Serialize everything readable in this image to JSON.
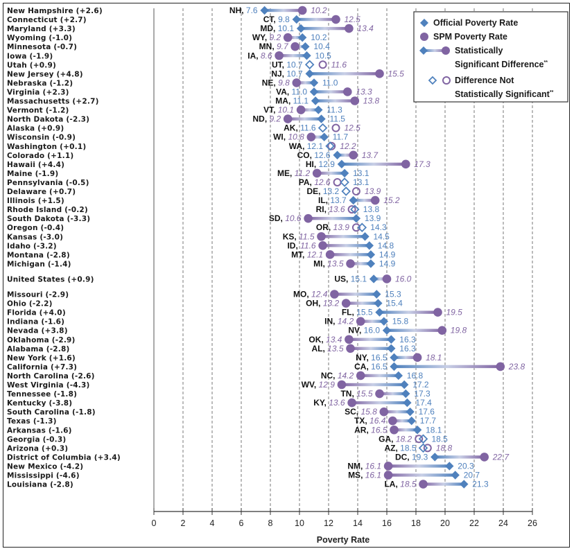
{
  "chart_data": {
    "type": "dumbbell",
    "title": "",
    "xlabel": "Poverty Rate",
    "ylabel": "",
    "xlim": [
      0,
      26
    ],
    "xticks": [
      0,
      2,
      4,
      6,
      8,
      10,
      12,
      14,
      16,
      18,
      20,
      22,
      24,
      26
    ],
    "grid": "vertical dashed",
    "legend_position": "top-right",
    "colors": {
      "official": "#4f81bd",
      "spm": "#8064a2"
    },
    "legend": [
      {
        "marker": "diamond-filled",
        "label": "Official Poverty Rate"
      },
      {
        "marker": "circle-filled",
        "label": "SPM Poverty Rate"
      },
      {
        "marker": "dumbbell",
        "label_line1": "Statistically",
        "label_line2": "Significant  Difference",
        "suffix": "**"
      },
      {
        "marker": "open-pair",
        "label_line1": "Difference Not",
        "label_line2": "Statistically  Significant",
        "suffix": "**"
      }
    ],
    "rows": [
      {
        "name": "New Hampshire",
        "diff": "(+2.6)",
        "abbr": "NH",
        "official": 7.6,
        "spm": 10.2,
        "sig": true
      },
      {
        "name": "Connecticut",
        "diff": "(+2.7)",
        "abbr": "CT",
        "official": 9.8,
        "spm": 12.5,
        "sig": true
      },
      {
        "name": "Maryland",
        "diff": "(+3.3)",
        "abbr": "MD",
        "official": 10.1,
        "spm": 13.4,
        "sig": true
      },
      {
        "name": "Wyoming",
        "diff": "(-1.0)",
        "abbr": "WY",
        "official": 10.2,
        "spm": 9.2,
        "sig": true
      },
      {
        "name": "Minnesota",
        "diff": "(-0.7)",
        "abbr": "MN",
        "official": 10.4,
        "spm": 9.7,
        "sig": true
      },
      {
        "name": "Iowa",
        "diff": "(-1.9)",
        "abbr": "IA",
        "official": 10.5,
        "spm": 8.6,
        "sig": true
      },
      {
        "name": "Utah",
        "diff": "(+0.9)",
        "abbr": "UT",
        "official": 10.7,
        "spm": 11.6,
        "sig": false
      },
      {
        "name": "New Jersey",
        "diff": "(+4.8)",
        "abbr": "NJ",
        "official": 10.7,
        "spm": 15.5,
        "sig": true
      },
      {
        "name": "Nebraska",
        "diff": "(-1.2)",
        "abbr": "NE",
        "official": 11.0,
        "spm": 9.8,
        "sig": true
      },
      {
        "name": "Virginia",
        "diff": "(+2.3)",
        "abbr": "VA",
        "official": 11.0,
        "spm": 13.3,
        "sig": true
      },
      {
        "name": "Massachusetts",
        "diff": "(+2.7)",
        "abbr": "MA",
        "official": 11.1,
        "spm": 13.8,
        "sig": true
      },
      {
        "name": "Vermont",
        "diff": "(-1.2)",
        "abbr": "VT",
        "official": 11.3,
        "spm": 10.1,
        "sig": true
      },
      {
        "name": "North Dakota",
        "diff": "(-2.3)",
        "abbr": "ND",
        "official": 11.5,
        "spm": 9.2,
        "sig": true
      },
      {
        "name": "Alaska",
        "diff": "(+0.9)",
        "abbr": "AK",
        "official": 11.6,
        "spm": 12.5,
        "sig": false
      },
      {
        "name": "Wisconsin",
        "diff": "(-0.9)",
        "abbr": "WI",
        "official": 11.7,
        "spm": 10.8,
        "sig": true
      },
      {
        "name": "Washington",
        "diff": "(+0.1)",
        "abbr": "WA",
        "official": 12.1,
        "spm": 12.2,
        "sig": false
      },
      {
        "name": "Colorado",
        "diff": "(+1.1)",
        "abbr": "CO",
        "official": 12.6,
        "spm": 13.7,
        "sig": true
      },
      {
        "name": "Hawaii",
        "diff": "(+4.4)",
        "abbr": "HI",
        "official": 12.9,
        "spm": 17.3,
        "sig": true
      },
      {
        "name": "Maine",
        "diff": "(-1.9)",
        "abbr": "ME",
        "official": 13.1,
        "spm": 11.2,
        "sig": true
      },
      {
        "name": "Pennsylvania",
        "diff": "(-0.5)",
        "abbr": "PA",
        "official": 13.1,
        "spm": 12.6,
        "sig": false
      },
      {
        "name": "Delaware",
        "diff": "(+0.7)",
        "abbr": "DE",
        "official": 13.2,
        "spm": 13.9,
        "sig": false
      },
      {
        "name": "Illinois",
        "diff": "(+1.5)",
        "abbr": "IL",
        "official": 13.7,
        "spm": 15.2,
        "sig": true
      },
      {
        "name": "Rhode Island",
        "diff": "(-0.2)",
        "abbr": "RI",
        "official": 13.8,
        "spm": 13.6,
        "sig": false
      },
      {
        "name": "South Dakota",
        "diff": "(-3.3)",
        "abbr": "SD",
        "official": 13.9,
        "spm": 10.6,
        "sig": true
      },
      {
        "name": "Oregon",
        "diff": "(-0.4)",
        "abbr": "OR",
        "official": 14.3,
        "spm": 13.9,
        "sig": false
      },
      {
        "name": "Kansas",
        "diff": "(-3.0)",
        "abbr": "KS",
        "official": 14.5,
        "spm": 11.5,
        "sig": true
      },
      {
        "name": "Idaho",
        "diff": "(-3.2)",
        "abbr": "ID",
        "official": 14.8,
        "spm": 11.6,
        "sig": true
      },
      {
        "name": "Montana",
        "diff": "(-2.8)",
        "abbr": "MT",
        "official": 14.9,
        "spm": 12.1,
        "sig": true
      },
      {
        "name": "Michigan",
        "diff": "(-1.4)",
        "abbr": "MI",
        "official": 14.9,
        "spm": 13.5,
        "sig": true
      },
      {
        "name": "United States",
        "diff": "(+0.9)",
        "abbr": "US",
        "official": 15.1,
        "spm": 16.0,
        "sig": true,
        "gap_before": true
      },
      {
        "name": "Missouri",
        "diff": "(-2.9)",
        "abbr": "MO",
        "official": 15.3,
        "spm": 12.4,
        "sig": true,
        "gap_before": true
      },
      {
        "name": "Ohio",
        "diff": "(-2.2)",
        "abbr": "OH",
        "official": 15.4,
        "spm": 13.2,
        "sig": true
      },
      {
        "name": "Florida",
        "diff": "(+4.0)",
        "abbr": "FL",
        "official": 15.5,
        "spm": 19.5,
        "sig": true
      },
      {
        "name": "Indiana",
        "diff": "(-1.6)",
        "abbr": "IN",
        "official": 15.8,
        "spm": 14.2,
        "sig": true
      },
      {
        "name": "Nevada",
        "diff": "(+3.8)",
        "abbr": "NV",
        "official": 16.0,
        "spm": 19.8,
        "sig": true
      },
      {
        "name": "Oklahoma",
        "diff": "(-2.9)",
        "abbr": "OK",
        "official": 16.3,
        "spm": 13.4,
        "sig": true
      },
      {
        "name": "Alabama",
        "diff": "(-2.8)",
        "abbr": "AL",
        "official": 16.3,
        "spm": 13.5,
        "sig": true
      },
      {
        "name": "New York",
        "diff": "(+1.6)",
        "abbr": "NY",
        "official": 16.5,
        "spm": 18.1,
        "sig": true
      },
      {
        "name": "California",
        "diff": "(+7.3)",
        "abbr": "CA",
        "official": 16.5,
        "spm": 23.8,
        "sig": true
      },
      {
        "name": "North Carolina",
        "diff": "(-2.6)",
        "abbr": "NC",
        "official": 16.8,
        "spm": 14.2,
        "sig": true
      },
      {
        "name": "West Virginia",
        "diff": "(-4.3)",
        "abbr": "WV",
        "official": 17.2,
        "spm": 12.9,
        "sig": true
      },
      {
        "name": "Tennessee",
        "diff": "(-1.8)",
        "abbr": "TN",
        "official": 17.3,
        "spm": 15.5,
        "sig": true
      },
      {
        "name": "Kentucky",
        "diff": "(-3.8)",
        "abbr": "KY",
        "official": 17.4,
        "spm": 13.6,
        "sig": true
      },
      {
        "name": "South Carolina",
        "diff": "(-1.8)",
        "abbr": "SC",
        "official": 17.6,
        "spm": 15.8,
        "sig": true
      },
      {
        "name": "Texas",
        "diff": "(-1.3)",
        "abbr": "TX",
        "official": 17.7,
        "spm": 16.4,
        "sig": true
      },
      {
        "name": "Arkansas",
        "diff": "(-1.6)",
        "abbr": "AR",
        "official": 18.1,
        "spm": 16.5,
        "sig": true
      },
      {
        "name": "Georgia",
        "diff": "(-0.3)",
        "abbr": "GA",
        "official": 18.5,
        "spm": 18.2,
        "sig": false
      },
      {
        "name": "Arizona",
        "diff": "(+0.3)",
        "abbr": "AZ",
        "official": 18.5,
        "spm": 18.8,
        "sig": false
      },
      {
        "name": "District of Columbia",
        "diff": "(+3.4)",
        "abbr": "DC",
        "official": 19.3,
        "spm": 22.7,
        "sig": true
      },
      {
        "name": "New Mexico",
        "diff": "(-4.2)",
        "abbr": "NM",
        "official": 20.3,
        "spm": 16.1,
        "sig": true
      },
      {
        "name": "Mississippi",
        "diff": "(-4.6)",
        "abbr": "MS",
        "official": 20.7,
        "spm": 16.1,
        "sig": true
      },
      {
        "name": "Louisiana",
        "diff": "(-2.8)",
        "abbr": "LA",
        "official": 21.3,
        "spm": 18.5,
        "sig": true
      }
    ]
  }
}
